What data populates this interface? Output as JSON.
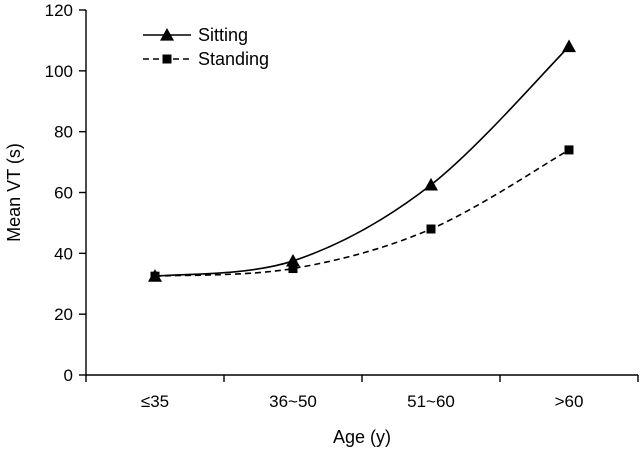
{
  "chart_data": {
    "type": "line",
    "categories": [
      "≤35",
      "36~50",
      "51~60",
      ">60"
    ],
    "series": [
      {
        "name": "Sitting",
        "values": [
          32.5,
          37.5,
          62.5,
          108
        ],
        "marker": "triangle",
        "line_style": "solid"
      },
      {
        "name": "Standing",
        "values": [
          32.5,
          35,
          48,
          74
        ],
        "marker": "square",
        "line_style": "dashed"
      }
    ],
    "xlabel": "Age (y)",
    "ylabel": "Mean VT (s)",
    "ylim": [
      0,
      120
    ],
    "yticks": [
      0,
      20,
      40,
      60,
      80,
      100,
      120
    ],
    "grid": false,
    "legend_position": "top-left",
    "colors": {
      "line": "#000000",
      "background": "#ffffff"
    }
  }
}
